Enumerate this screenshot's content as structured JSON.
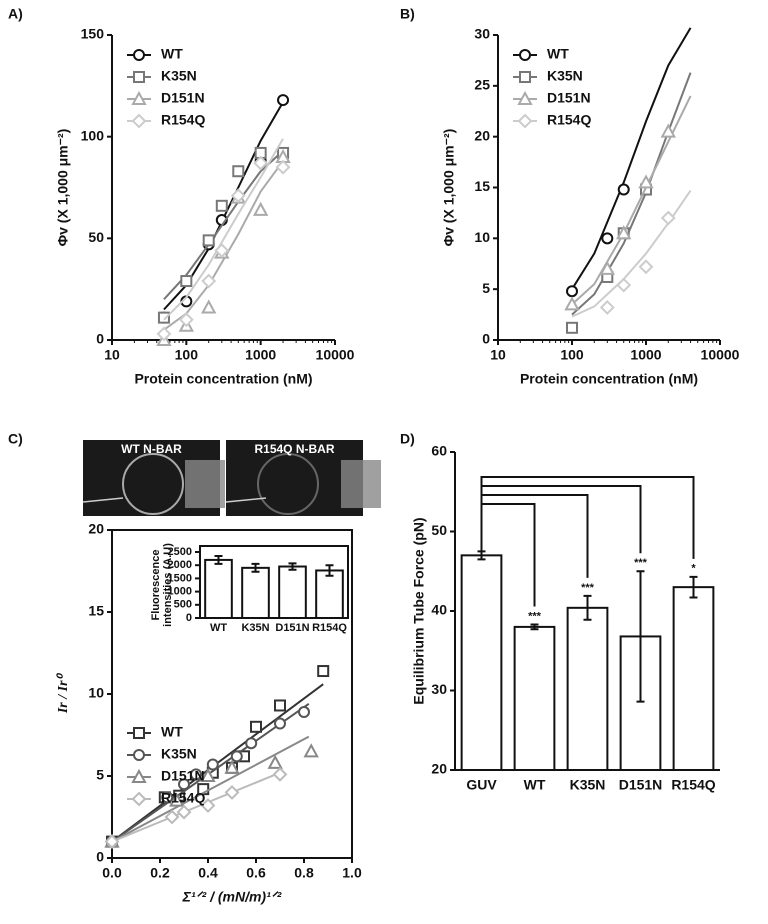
{
  "chart_data": [
    {
      "type": "scatter",
      "panel": "A)",
      "xlabel": "Protein concentration (nM)",
      "ylabel": "Φv (X 1,000 μm⁻²)",
      "xscale": "log",
      "xlim": [
        10,
        10000
      ],
      "xticks": [
        10,
        100,
        1000,
        10000
      ],
      "ylim": [
        0,
        150
      ],
      "yticks": [
        0,
        50,
        100,
        150
      ],
      "legend": "upper left",
      "series": [
        {
          "name": "WT",
          "color": "#111111",
          "marker": "circle",
          "x": [
            50,
            100,
            200,
            300,
            1000,
            2000
          ],
          "values": [
            11,
            19,
            47,
            59,
            88,
            118
          ],
          "fit_x": [
            50,
            100,
            200,
            500,
            1000,
            2000
          ],
          "fit": [
            15,
            27,
            45,
            75,
            98,
            117
          ]
        },
        {
          "name": "K35N",
          "color": "#777777",
          "marker": "square",
          "x": [
            50,
            100,
            200,
            300,
            500,
            1000,
            2000
          ],
          "values": [
            11,
            29,
            49,
            66,
            83,
            92,
            92
          ],
          "fit_x": [
            50,
            100,
            200,
            500,
            1000,
            2000
          ],
          "fit": [
            20,
            32,
            47,
            68,
            83,
            93
          ]
        },
        {
          "name": "D151N",
          "color": "#aaaaaa",
          "marker": "triangle",
          "x": [
            50,
            100,
            200,
            300,
            500,
            1000,
            2000
          ],
          "values": [
            0,
            7,
            16,
            43,
            70,
            64,
            90
          ],
          "fit_x": [
            50,
            100,
            200,
            500,
            1000,
            2000
          ],
          "fit": [
            5,
            13,
            27,
            52,
            73,
            88
          ]
        },
        {
          "name": "R154Q",
          "color": "#cccccc",
          "marker": "diamond",
          "x": [
            50,
            100,
            200,
            300,
            500,
            1000,
            2000
          ],
          "values": [
            3,
            10,
            29,
            44,
            71,
            87,
            85
          ],
          "fit_x": [
            50,
            100,
            200,
            500,
            1000,
            2000
          ],
          "fit": [
            10,
            21,
            37,
            62,
            80,
            99
          ]
        }
      ]
    },
    {
      "type": "scatter",
      "panel": "B)",
      "xlabel": "Protein concentration (nM)",
      "ylabel": "Φv (X 1,000 μm⁻²)",
      "xscale": "log",
      "xlim": [
        10,
        10000
      ],
      "xticks": [
        10,
        100,
        1000,
        10000
      ],
      "ylim": [
        0,
        30
      ],
      "yticks": [
        0,
        5,
        10,
        15,
        20,
        25,
        30
      ],
      "legend": "upper left",
      "series": [
        {
          "name": "WT",
          "color": "#111111",
          "marker": "circle",
          "x": [
            100,
            300,
            500
          ],
          "values": [
            4.8,
            10,
            14.8
          ],
          "fit_x": [
            100,
            200,
            500,
            1000,
            2000,
            4000
          ],
          "fit": [
            5,
            8.5,
            15.5,
            21.5,
            27,
            30.7
          ]
        },
        {
          "name": "K35N",
          "color": "#777777",
          "marker": "square",
          "x": [
            100,
            300,
            500,
            1000
          ],
          "values": [
            1.2,
            6.2,
            10.5,
            14.8
          ],
          "fit_x": [
            100,
            200,
            500,
            1000,
            2000,
            4000
          ],
          "fit": [
            2.5,
            4.5,
            9.5,
            14.5,
            20.5,
            26.3
          ]
        },
        {
          "name": "D151N",
          "color": "#aaaaaa",
          "marker": "triangle",
          "x": [
            100,
            300,
            500,
            1000,
            2000
          ],
          "values": [
            3.5,
            7,
            10.5,
            15.5,
            20.5
          ],
          "fit_x": [
            100,
            200,
            500,
            1000,
            2000,
            4000
          ],
          "fit": [
            3.5,
            5.5,
            10.5,
            15,
            19.5,
            24
          ]
        },
        {
          "name": "R154Q",
          "color": "#cccccc",
          "marker": "diamond",
          "x": [
            300,
            500,
            1000,
            2000
          ],
          "values": [
            3.2,
            5.4,
            7.2,
            12
          ],
          "fit_x": [
            100,
            200,
            500,
            1000,
            2000,
            4000
          ],
          "fit": [
            2.3,
            3.3,
            6,
            8.5,
            11.5,
            14.7
          ]
        }
      ]
    },
    {
      "type": "scatter",
      "panel": "C)",
      "images": [
        "WT N-BAR",
        "R154Q N-BAR"
      ],
      "xlabel": "Σ¹ᐟ² / (mN/m)¹ᐟ²",
      "ylabel": "Ir / Ir⁰",
      "xlim": [
        0,
        1
      ],
      "xticks": [
        {
          "value": 0,
          "label": "0.0"
        },
        0.2,
        0.4,
        0.6,
        0.8,
        {
          "value": 1,
          "label": "1.0"
        }
      ],
      "ylim": [
        0,
        20
      ],
      "yticks": [
        0,
        5,
        10,
        15,
        20
      ],
      "legend": "lower left",
      "box": true,
      "series": [
        {
          "name": "WT",
          "color": "#333333",
          "marker": "square",
          "x": [
            0,
            0.22,
            0.28,
            0.38,
            0.42,
            0.5,
            0.55,
            0.6,
            0.7,
            0.88
          ],
          "values": [
            1,
            3.7,
            3.8,
            4.2,
            5.2,
            5.5,
            6.2,
            8,
            9.3,
            11.4
          ],
          "fit_x": [
            0,
            0.88
          ],
          "fit": [
            1,
            10.6
          ]
        },
        {
          "name": "K35N",
          "color": "#555555",
          "marker": "circle",
          "x": [
            0,
            0.23,
            0.3,
            0.35,
            0.42,
            0.52,
            0.58,
            0.7,
            0.8
          ],
          "values": [
            1,
            3.7,
            4.5,
            5.1,
            5.7,
            6.2,
            7,
            8.2,
            8.9
          ],
          "fit_x": [
            0,
            0.82
          ],
          "fit": [
            1,
            9.4
          ]
        },
        {
          "name": "D151N",
          "color": "#888888",
          "marker": "triangle",
          "x": [
            0,
            0.27,
            0.4,
            0.5,
            0.68,
            0.83
          ],
          "values": [
            1,
            3.5,
            5,
            5.5,
            5.8,
            6.5
          ],
          "fit_x": [
            0,
            0.82
          ],
          "fit": [
            1,
            7.4
          ]
        },
        {
          "name": "R154Q",
          "color": "#bbbbbb",
          "marker": "diamond",
          "x": [
            0,
            0.25,
            0.3,
            0.4,
            0.5,
            0.7
          ],
          "values": [
            1,
            2.5,
            2.8,
            3.2,
            4,
            5.1
          ],
          "fit_x": [
            0,
            0.7
          ],
          "fit": [
            1,
            5.2
          ]
        }
      ]
    },
    {
      "type": "bar",
      "ylabel": [
        "Fluorescence",
        "intensities (A.U)"
      ],
      "categories": [
        "WT",
        "K35N",
        "D151N",
        "R154Q"
      ],
      "values": [
        2200,
        1900,
        1950,
        1800
      ],
      "errors": [
        150,
        150,
        120,
        200
      ],
      "ylim": [
        0,
        2500
      ],
      "yticks": [
        0,
        500,
        1000,
        1500,
        2000,
        2500
      ],
      "box": true
    },
    {
      "type": "bar",
      "panel": "D)",
      "ylabel": "Equilibrium Tube Force (pN)",
      "categories": [
        "GUV",
        "WT",
        "K35N",
        "D151N",
        "R154Q"
      ],
      "values": [
        47,
        38,
        40.4,
        36.8,
        43
      ],
      "errors": [
        0.5,
        0.3,
        1.5,
        8.2,
        1.3
      ],
      "annotations": [
        null,
        "***",
        "***",
        "***",
        "*"
      ],
      "ylim": [
        20,
        60
      ],
      "yticks": [
        20,
        30,
        40,
        50,
        60
      ]
    }
  ]
}
